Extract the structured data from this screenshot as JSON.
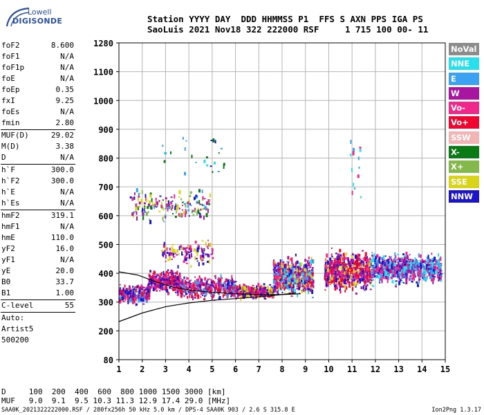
{
  "logo": {
    "line1": "Lowell",
    "line2": "DIGISONDE"
  },
  "header": {
    "line1": "Station YYYY DAY  DDD HHMMSS P1  FFS S AXN PPS IGA PS",
    "line2": "SaoLuis 2021 Nov18 322 222000 RSF     1 715 100 00- 11"
  },
  "params": [
    {
      "label": "foF2",
      "value": "8.600"
    },
    {
      "label": "foF1",
      "value": "N/A"
    },
    {
      "label": "foF1p",
      "value": "N/A"
    },
    {
      "label": "foE",
      "value": "N/A"
    },
    {
      "label": "foEp",
      "value": "0.35"
    },
    {
      "label": "fxI",
      "value": "9.25"
    },
    {
      "label": "foEs",
      "value": "N/A"
    },
    {
      "label": "fmin",
      "value": "2.80"
    },
    {
      "sep": true
    },
    {
      "label": "MUF(D)",
      "value": "29.02"
    },
    {
      "label": "M(D)",
      "value": "3.38"
    },
    {
      "label": "D",
      "value": "N/A"
    },
    {
      "sep": true
    },
    {
      "label": "h`F",
      "value": "300.0"
    },
    {
      "label": "h`F2",
      "value": "300.0"
    },
    {
      "label": "h`E",
      "value": "N/A"
    },
    {
      "label": "h`Es",
      "value": "N/A"
    },
    {
      "sep": true
    },
    {
      "label": "hmF2",
      "value": "319.1"
    },
    {
      "label": "hmF1",
      "value": "N/A"
    },
    {
      "label": "hmE",
      "value": "110.0"
    },
    {
      "label": "yF2",
      "value": "16.0"
    },
    {
      "label": "yF1",
      "value": "N/A"
    },
    {
      "label": "yE",
      "value": "20.0"
    },
    {
      "label": "B0",
      "value": "33.7"
    },
    {
      "label": "B1",
      "value": "1.00"
    },
    {
      "sep": true
    },
    {
      "label": "C-level",
      "value": "55"
    },
    {
      "sep": true
    },
    {
      "text": "Auto:"
    },
    {
      "text": "Artist5"
    },
    {
      "text": "500200"
    }
  ],
  "legend": [
    {
      "label": "NoVal",
      "color": "#8c8c8c"
    },
    {
      "label": "NNE",
      "color": "#28e0ec"
    },
    {
      "label": "E",
      "color": "#3aa2f0"
    },
    {
      "label": "W",
      "color": "#a8159e"
    },
    {
      "label": "Vo-",
      "color": "#f0288c"
    },
    {
      "label": "Vo+",
      "color": "#ee0530"
    },
    {
      "label": "SSW",
      "color": "#f2b4b4"
    },
    {
      "label": "X-",
      "color": "#0a7a14"
    },
    {
      "label": "X+",
      "color": "#84b84c"
    },
    {
      "label": "SSE",
      "color": "#d8d41c"
    },
    {
      "label": "NNW",
      "color": "#1c14c8"
    }
  ],
  "muf_table": {
    "line1": "D     100  200  400  600  800 1000 1500 3000 [km]",
    "line2": "MUF   9.0  9.1  9.5 10.3 11.3 12.9 17.4 29.0 [MHz]"
  },
  "footer": {
    "left": "SAA0K_2021322222000.RSF / 280fx256h 50 kHz 5.0 km / DPS-4 SAA0K 903 / 2.6 S 315.8 E",
    "right": "Ion2Png 1.3.17"
  },
  "chart_data": {
    "type": "scatter",
    "x_ticks": [
      1,
      2,
      3,
      4,
      5,
      6,
      7,
      8,
      9,
      10,
      11,
      12,
      13,
      14,
      15
    ],
    "y_ticks": [
      80,
      200,
      300,
      400,
      500,
      600,
      700,
      800,
      900,
      1000,
      1100,
      1280
    ],
    "xlim": [
      1,
      15
    ],
    "y_scale": "nonlinear (ionogram height scale)",
    "grid": true,
    "clusters": [
      {
        "x": [
          1.0,
          2.3
        ],
        "y": [
          285,
          370
        ],
        "n": 260,
        "colors": [
          "#a8159e",
          "#f0288c",
          "#ee0530",
          "#1c14c8",
          "#3aa2f0"
        ]
      },
      {
        "x": [
          2.2,
          3.6
        ],
        "y": [
          320,
          420
        ],
        "n": 300,
        "colors": [
          "#a8159e",
          "#f0288c",
          "#ee0530",
          "#1c14c8"
        ]
      },
      {
        "x": [
          3.6,
          6.0
        ],
        "y": [
          300,
          400
        ],
        "n": 380,
        "colors": [
          "#a8159e",
          "#f0288c",
          "#ee0530",
          "#1c14c8",
          "#3aa2f0"
        ]
      },
      {
        "x": [
          6.0,
          7.6
        ],
        "y": [
          305,
          365
        ],
        "n": 300,
        "colors": [
          "#a8159e",
          "#f0288c",
          "#ee0530",
          "#d8d41c",
          "#1c14c8"
        ]
      },
      {
        "x": [
          7.6,
          9.3
        ],
        "y": [
          305,
          470
        ],
        "n": 620,
        "colors": [
          "#a8159e",
          "#f0288c",
          "#ee0530",
          "#1c14c8",
          "#3aa2f0",
          "#28e0ec",
          "#d8d41c"
        ]
      },
      {
        "x": [
          9.8,
          11.8
        ],
        "y": [
          320,
          490
        ],
        "n": 700,
        "colors": [
          "#f0288c",
          "#ee0530",
          "#a8159e",
          "#1c14c8",
          "#d8d41c"
        ]
      },
      {
        "x": [
          11.8,
          14.8
        ],
        "y": [
          350,
          480
        ],
        "n": 780,
        "colors": [
          "#3aa2f0",
          "#28e0ec",
          "#a8159e",
          "#1c14c8",
          "#f0288c"
        ]
      },
      {
        "x": [
          2.8,
          5.0
        ],
        "y": [
          420,
          520
        ],
        "n": 120,
        "colors": [
          "#a8159e",
          "#f0288c",
          "#1c14c8",
          "#d8d41c"
        ]
      },
      {
        "x": [
          1.4,
          4.9
        ],
        "y": [
          565,
          700
        ],
        "n": 180,
        "colors": [
          "#0a7a14",
          "#84b84c",
          "#d8d41c",
          "#a8159e",
          "#1c14c8",
          "#3aa2f0",
          "#f0288c"
        ]
      },
      {
        "x": [
          2.8,
          5.5
        ],
        "y": [
          700,
          930
        ],
        "n": 25,
        "colors": [
          "#28e0ec",
          "#3aa2f0",
          "#0a7a14",
          "#1c14c8"
        ]
      },
      {
        "x": [
          10.8,
          11.4
        ],
        "y": [
          600,
          930
        ],
        "n": 14,
        "colors": [
          "#28e0ec",
          "#f0288c",
          "#3aa2f0"
        ]
      }
    ],
    "profile_curves": [
      {
        "name": "profile",
        "x": [
          1.0,
          2.0,
          3.0,
          4.0,
          5.0,
          6.0,
          7.0,
          8.0,
          8.6
        ],
        "y": [
          232,
          262,
          284,
          297,
          306,
          312,
          318,
          326,
          332
        ]
      },
      {
        "name": "trace",
        "x": [
          1.0,
          1.8,
          2.6,
          3.4,
          4.2,
          5.0,
          6.0,
          7.0,
          8.0,
          8.8
        ],
        "y": [
          405,
          394,
          370,
          350,
          340,
          334,
          329,
          326,
          326,
          329
        ]
      }
    ]
  }
}
